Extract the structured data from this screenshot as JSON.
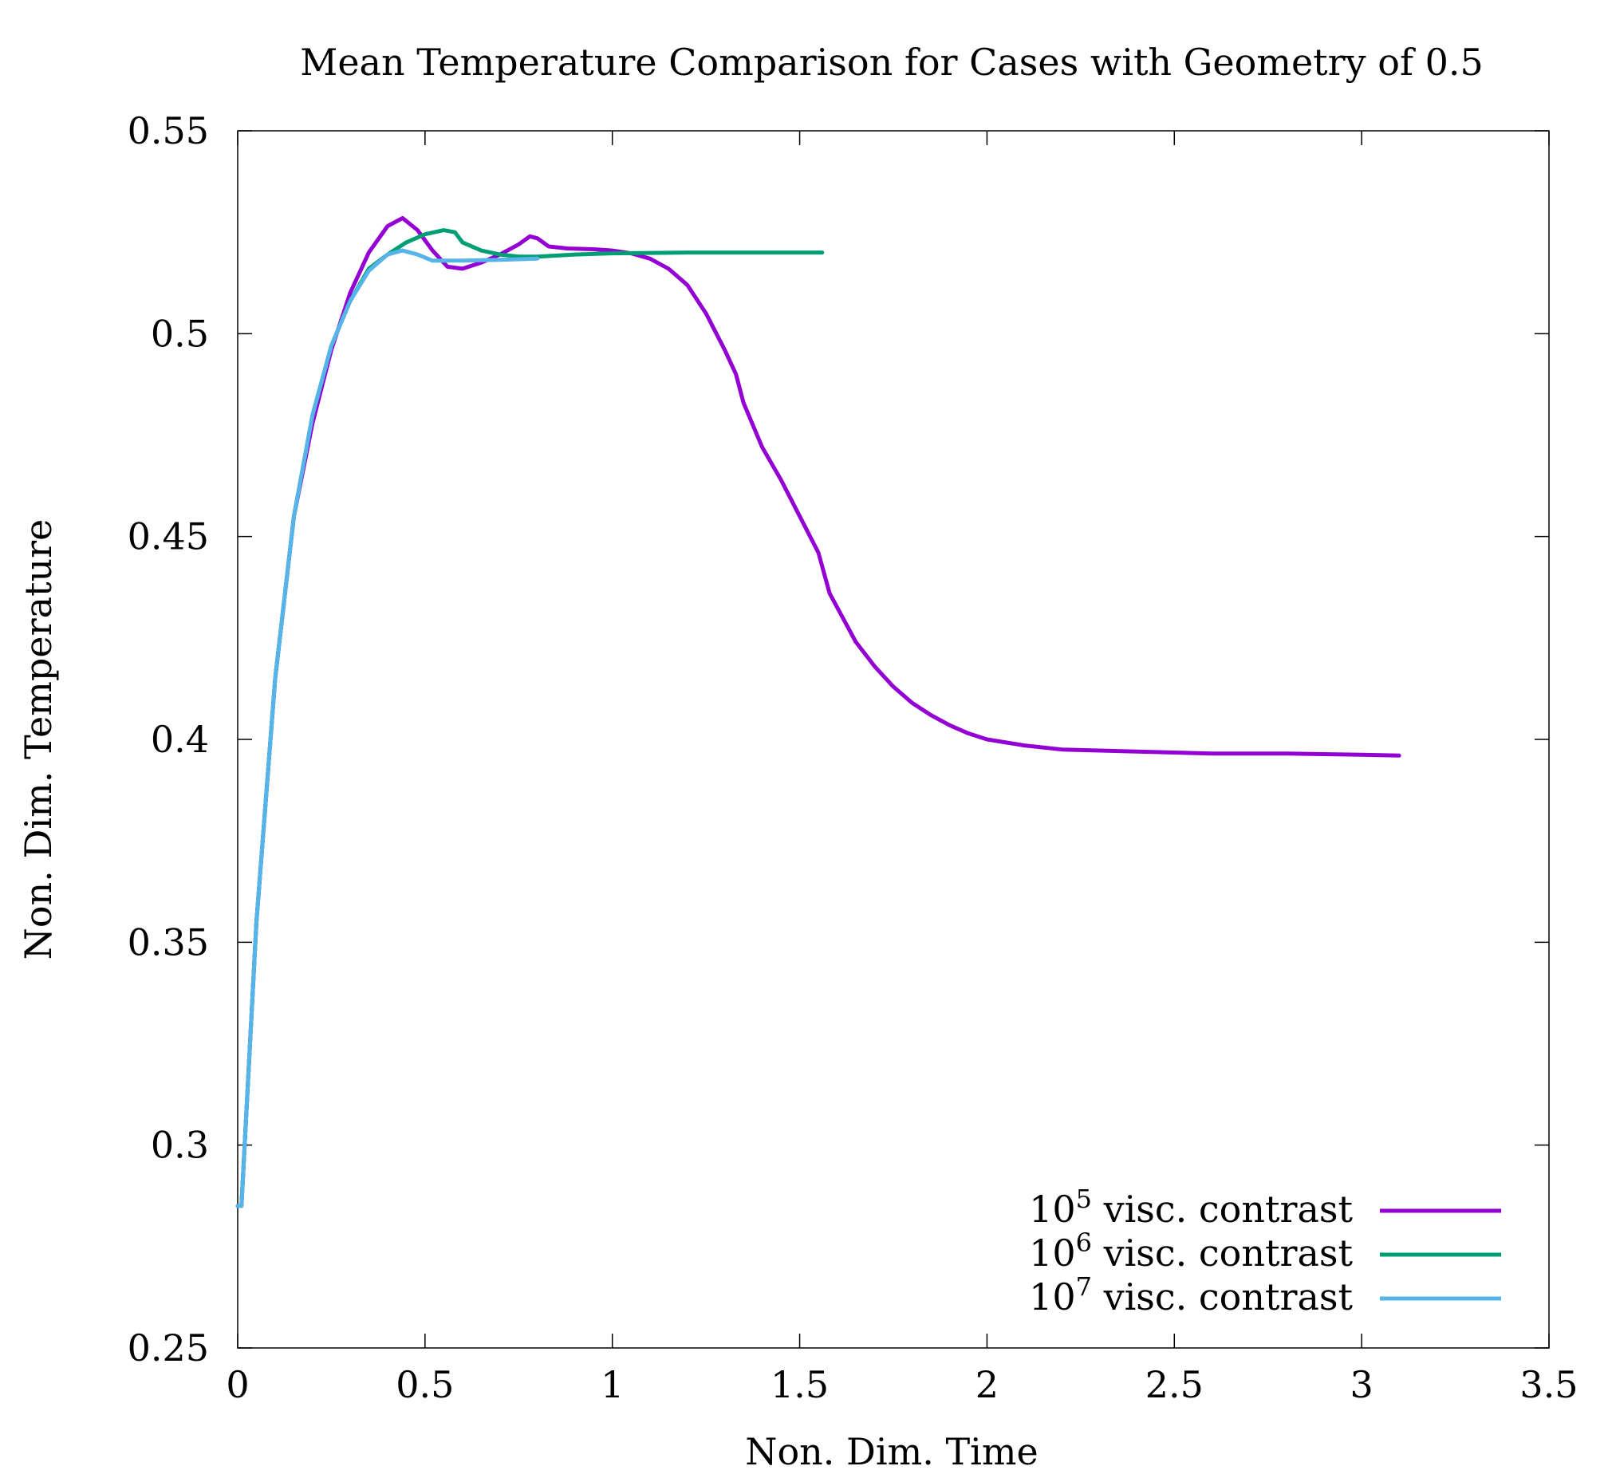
{
  "chart_data": {
    "type": "line",
    "title": "Mean Temperature Comparison for Cases with Geometry of 0.5",
    "xlabel": "Non. Dim. Time",
    "ylabel": "Non. Dim. Temperature",
    "xlim": [
      0,
      3.5
    ],
    "ylim": [
      0.25,
      0.55
    ],
    "xticks": [
      0,
      0.5,
      1,
      1.5,
      2,
      2.5,
      3,
      3.5
    ],
    "xtick_labels": [
      "0",
      "0.5",
      "1",
      "1.5",
      "2",
      "2.5",
      "3",
      "3.5"
    ],
    "yticks": [
      0.25,
      0.3,
      0.35,
      0.4,
      0.45,
      0.5,
      0.55
    ],
    "ytick_labels": [
      "0.25",
      "0.3",
      "0.35",
      "0.4",
      "0.45",
      "0.5",
      "0.55"
    ],
    "grid": false,
    "legend_position": "bottom-right",
    "series": [
      {
        "name": "10^5 visc. contrast",
        "legend_base": "10",
        "legend_exp": "5",
        "legend_text": " visc. contrast",
        "color": "#9400d3",
        "points": [
          [
            0.0,
            0.285
          ],
          [
            0.01,
            0.285
          ],
          [
            0.05,
            0.355
          ],
          [
            0.1,
            0.415
          ],
          [
            0.15,
            0.455
          ],
          [
            0.2,
            0.478
          ],
          [
            0.25,
            0.496
          ],
          [
            0.3,
            0.51
          ],
          [
            0.35,
            0.52
          ],
          [
            0.4,
            0.5265
          ],
          [
            0.44,
            0.5285
          ],
          [
            0.48,
            0.5255
          ],
          [
            0.52,
            0.5205
          ],
          [
            0.56,
            0.5165
          ],
          [
            0.6,
            0.516
          ],
          [
            0.65,
            0.5175
          ],
          [
            0.7,
            0.5195
          ],
          [
            0.75,
            0.522
          ],
          [
            0.78,
            0.524
          ],
          [
            0.8,
            0.5235
          ],
          [
            0.83,
            0.5215
          ],
          [
            0.88,
            0.521
          ],
          [
            0.95,
            0.5208
          ],
          [
            1.0,
            0.5205
          ],
          [
            1.05,
            0.5198
          ],
          [
            1.1,
            0.5185
          ],
          [
            1.15,
            0.516
          ],
          [
            1.2,
            0.512
          ],
          [
            1.25,
            0.505
          ],
          [
            1.3,
            0.496
          ],
          [
            1.33,
            0.49
          ],
          [
            1.35,
            0.483
          ],
          [
            1.4,
            0.472
          ],
          [
            1.45,
            0.464
          ],
          [
            1.5,
            0.455
          ],
          [
            1.55,
            0.446
          ],
          [
            1.58,
            0.436
          ],
          [
            1.65,
            0.424
          ],
          [
            1.7,
            0.418
          ],
          [
            1.75,
            0.413
          ],
          [
            1.8,
            0.409
          ],
          [
            1.85,
            0.406
          ],
          [
            1.9,
            0.4035
          ],
          [
            1.95,
            0.4015
          ],
          [
            2.0,
            0.4
          ],
          [
            2.1,
            0.3985
          ],
          [
            2.2,
            0.3975
          ],
          [
            2.4,
            0.397
          ],
          [
            2.6,
            0.3965
          ],
          [
            2.8,
            0.3965
          ],
          [
            3.0,
            0.3962
          ],
          [
            3.1,
            0.396
          ]
        ]
      },
      {
        "name": "10^6 visc. contrast",
        "legend_base": "10",
        "legend_exp": "6",
        "legend_text": " visc. contrast",
        "color": "#009e73",
        "points": [
          [
            0.0,
            0.285
          ],
          [
            0.01,
            0.285
          ],
          [
            0.05,
            0.355
          ],
          [
            0.1,
            0.415
          ],
          [
            0.15,
            0.455
          ],
          [
            0.2,
            0.48
          ],
          [
            0.25,
            0.497
          ],
          [
            0.3,
            0.508
          ],
          [
            0.35,
            0.516
          ],
          [
            0.4,
            0.5195
          ],
          [
            0.45,
            0.5225
          ],
          [
            0.5,
            0.5245
          ],
          [
            0.55,
            0.5255
          ],
          [
            0.58,
            0.525
          ],
          [
            0.6,
            0.5225
          ],
          [
            0.65,
            0.5205
          ],
          [
            0.7,
            0.5195
          ],
          [
            0.75,
            0.519
          ],
          [
            0.8,
            0.519
          ],
          [
            0.9,
            0.5195
          ],
          [
            1.0,
            0.5198
          ],
          [
            1.2,
            0.52
          ],
          [
            1.4,
            0.52
          ],
          [
            1.56,
            0.52
          ]
        ]
      },
      {
        "name": "10^7 visc. contrast",
        "legend_base": "10",
        "legend_exp": "7",
        "legend_text": " visc. contrast",
        "color": "#56b4e9",
        "points": [
          [
            0.0,
            0.285
          ],
          [
            0.01,
            0.285
          ],
          [
            0.05,
            0.355
          ],
          [
            0.1,
            0.415
          ],
          [
            0.15,
            0.455
          ],
          [
            0.2,
            0.48
          ],
          [
            0.25,
            0.497
          ],
          [
            0.3,
            0.508
          ],
          [
            0.35,
            0.5155
          ],
          [
            0.4,
            0.5195
          ],
          [
            0.44,
            0.5205
          ],
          [
            0.48,
            0.5195
          ],
          [
            0.52,
            0.518
          ],
          [
            0.6,
            0.518
          ],
          [
            0.7,
            0.5182
          ],
          [
            0.8,
            0.5185
          ]
        ]
      }
    ]
  }
}
